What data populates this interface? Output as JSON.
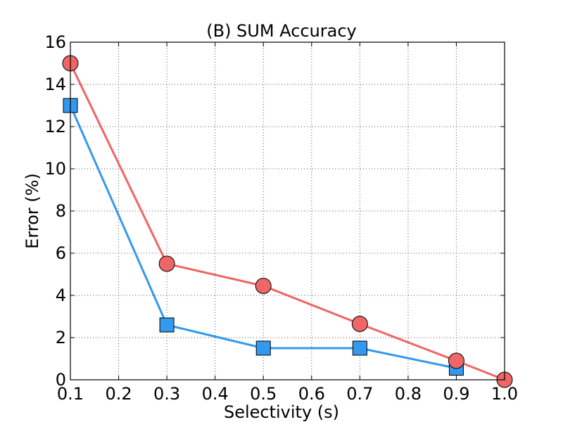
{
  "chart_data": {
    "type": "line",
    "title": "(B) SUM Accuracy",
    "xlabel": "Selectivity (s)",
    "ylabel": "Error (%)",
    "xlim": [
      0.1,
      1.0
    ],
    "ylim": [
      0,
      16
    ],
    "xticks": [
      0.1,
      0.2,
      0.3,
      0.4,
      0.5,
      0.6,
      0.7,
      0.8,
      0.9,
      1.0
    ],
    "xtick_labels": [
      "0.1",
      "0.2",
      "0.3",
      "0.4",
      "0.5",
      "0.6",
      "0.7",
      "0.8",
      "0.9",
      "1.0"
    ],
    "yticks": [
      0,
      2,
      4,
      6,
      8,
      10,
      12,
      14,
      16
    ],
    "ytick_labels": [
      "0",
      "2",
      "4",
      "6",
      "8",
      "10",
      "12",
      "14",
      "16"
    ],
    "grid": true,
    "series": [
      {
        "marker": "square",
        "color": "#3399ee",
        "x": [
          0.1,
          0.3,
          0.5,
          0.7,
          0.9
        ],
        "y": [
          13.0,
          2.6,
          1.5,
          1.5,
          0.55
        ]
      },
      {
        "marker": "circle",
        "color": "#ee6666",
        "x": [
          0.1,
          0.3,
          0.5,
          0.7,
          0.9,
          1.0
        ],
        "y": [
          15.0,
          5.5,
          4.45,
          2.65,
          0.9,
          0.0
        ]
      }
    ]
  }
}
